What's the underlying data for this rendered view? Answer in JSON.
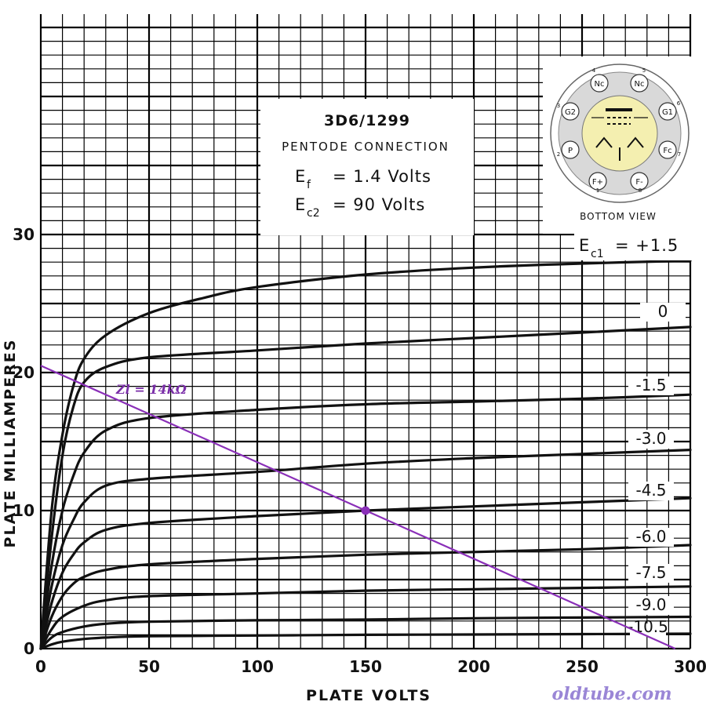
{
  "chart_data": {
    "type": "line",
    "title": "3D6/1299",
    "subtitle": "PENTODE CONNECTION",
    "conditions": [
      {
        "symbol": "E",
        "sub": "f",
        "text": "= 1.4 Volts"
      },
      {
        "symbol": "E",
        "sub": "c2",
        "text": "= 90 Volts"
      }
    ],
    "xlabel": "PLATE VOLTS",
    "ylabel": "PLATE MILLIAMPERES",
    "xlim": [
      0,
      300
    ],
    "ylim": [
      0,
      45
    ],
    "x_ticks": [
      0,
      50,
      100,
      150,
      200,
      250,
      300
    ],
    "y_ticks": [
      0,
      10,
      20,
      30
    ],
    "grid": true,
    "series_prefix": {
      "symbol": "E",
      "sub": "c1",
      "text": "= +1.5"
    },
    "series": [
      {
        "name": "+1.5",
        "label": "E c1 = +1.5",
        "points": [
          [
            0,
            0
          ],
          [
            5,
            10
          ],
          [
            10,
            15.5
          ],
          [
            15,
            19
          ],
          [
            20,
            21
          ],
          [
            30,
            22.7
          ],
          [
            50,
            24.3
          ],
          [
            75,
            25.4
          ],
          [
            100,
            26.2
          ],
          [
            150,
            27.1
          ],
          [
            200,
            27.6
          ],
          [
            250,
            27.9
          ],
          [
            300,
            28.1
          ]
        ]
      },
      {
        "name": "0",
        "label": "0",
        "points": [
          [
            0,
            0
          ],
          [
            5,
            8
          ],
          [
            10,
            14
          ],
          [
            15,
            17.5
          ],
          [
            20,
            19.3
          ],
          [
            30,
            20.4
          ],
          [
            50,
            21.1
          ],
          [
            100,
            21.6
          ],
          [
            150,
            22.1
          ],
          [
            200,
            22.5
          ],
          [
            250,
            22.9
          ],
          [
            300,
            23.3
          ]
        ]
      },
      {
        "name": "-1.5",
        "label": "-1.5",
        "points": [
          [
            0,
            0
          ],
          [
            5,
            6
          ],
          [
            10,
            10
          ],
          [
            15,
            12.5
          ],
          [
            20,
            14.2
          ],
          [
            30,
            15.8
          ],
          [
            50,
            16.7
          ],
          [
            100,
            17.3
          ],
          [
            150,
            17.7
          ],
          [
            200,
            17.9
          ],
          [
            250,
            18.1
          ],
          [
            300,
            18.4
          ]
        ]
      },
      {
        "name": "-3.0",
        "label": "-3.0",
        "points": [
          [
            0,
            0
          ],
          [
            5,
            4.5
          ],
          [
            10,
            7.5
          ],
          [
            15,
            9.3
          ],
          [
            20,
            10.6
          ],
          [
            30,
            11.8
          ],
          [
            50,
            12.3
          ],
          [
            100,
            12.8
          ],
          [
            150,
            13.4
          ],
          [
            200,
            13.8
          ],
          [
            250,
            14.1
          ],
          [
            300,
            14.4
          ]
        ]
      },
      {
        "name": "-4.5",
        "label": "-4.5",
        "points": [
          [
            0,
            0
          ],
          [
            5,
            3.3
          ],
          [
            10,
            5.5
          ],
          [
            15,
            6.8
          ],
          [
            20,
            7.7
          ],
          [
            30,
            8.6
          ],
          [
            50,
            9.1
          ],
          [
            100,
            9.6
          ],
          [
            150,
            10.0
          ],
          [
            200,
            10.3
          ],
          [
            250,
            10.6
          ],
          [
            300,
            10.9
          ]
        ]
      },
      {
        "name": "-6.0",
        "label": "-6.0",
        "points": [
          [
            0,
            0
          ],
          [
            5,
            2.3
          ],
          [
            10,
            3.8
          ],
          [
            15,
            4.7
          ],
          [
            20,
            5.2
          ],
          [
            30,
            5.7
          ],
          [
            50,
            6.1
          ],
          [
            100,
            6.5
          ],
          [
            150,
            6.8
          ],
          [
            200,
            7.0
          ],
          [
            250,
            7.2
          ],
          [
            300,
            7.5
          ]
        ]
      },
      {
        "name": "-7.5",
        "label": "-7.5",
        "points": [
          [
            0,
            0
          ],
          [
            5,
            1.4
          ],
          [
            10,
            2.3
          ],
          [
            20,
            3.1
          ],
          [
            30,
            3.5
          ],
          [
            50,
            3.8
          ],
          [
            100,
            4.0
          ],
          [
            150,
            4.2
          ],
          [
            200,
            4.3
          ],
          [
            250,
            4.4
          ],
          [
            300,
            4.5
          ]
        ]
      },
      {
        "name": "-9.0",
        "label": "-9.0",
        "points": [
          [
            0,
            0
          ],
          [
            5,
            0.8
          ],
          [
            10,
            1.2
          ],
          [
            20,
            1.6
          ],
          [
            30,
            1.8
          ],
          [
            50,
            1.95
          ],
          [
            100,
            2.05
          ],
          [
            150,
            2.1
          ],
          [
            200,
            2.2
          ],
          [
            250,
            2.25
          ],
          [
            300,
            2.3
          ]
        ]
      },
      {
        "name": "-10.5",
        "label": "-10.5",
        "points": [
          [
            0,
            0
          ],
          [
            5,
            0.3
          ],
          [
            10,
            0.5
          ],
          [
            20,
            0.7
          ],
          [
            30,
            0.8
          ],
          [
            50,
            0.9
          ],
          [
            100,
            0.95
          ],
          [
            150,
            1.0
          ],
          [
            200,
            1.02
          ],
          [
            250,
            1.05
          ],
          [
            300,
            1.08
          ]
        ]
      }
    ],
    "load_line": {
      "label": "Zl = 14kΩ",
      "points": [
        [
          0,
          20.5
        ],
        [
          293,
          0
        ]
      ],
      "operating_point": [
        150,
        10
      ],
      "color": "#8a2fb8"
    },
    "inset": {
      "caption": "BOTTOM VIEW",
      "pins": [
        {
          "num": "1",
          "label": "F+"
        },
        {
          "num": "2",
          "label": "P"
        },
        {
          "num": "3",
          "label": "G2"
        },
        {
          "num": "4",
          "label": "Nc"
        },
        {
          "num": "5",
          "label": "Nc"
        },
        {
          "num": "6",
          "label": "G1"
        },
        {
          "num": "7",
          "label": "Fc"
        },
        {
          "num": "8",
          "label": "F-"
        }
      ]
    }
  },
  "watermark": "oldtube.com"
}
